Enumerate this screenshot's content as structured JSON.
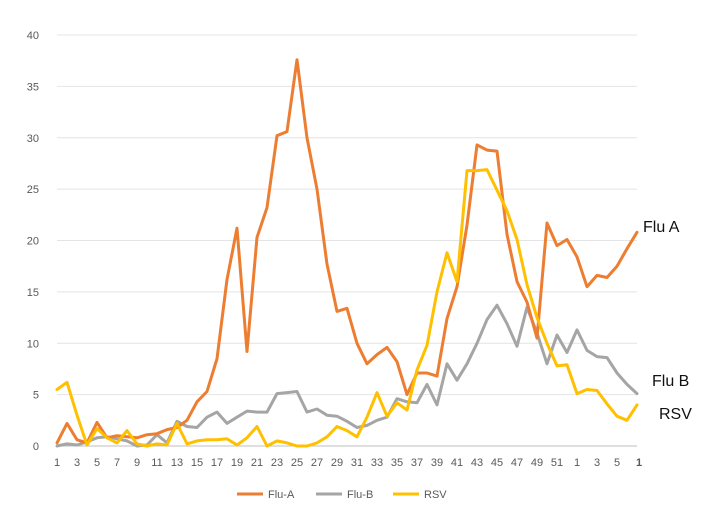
{
  "chart_data": {
    "type": "line",
    "ylim": [
      0,
      40
    ],
    "y_ticks": [
      "0",
      "5",
      "10",
      "15",
      "20",
      "25",
      "30",
      "35",
      "40"
    ],
    "x_tick_labels": [
      "1",
      "3",
      "5",
      "7",
      "9",
      "11",
      "13",
      "15",
      "17",
      "19",
      "21",
      "23",
      "25",
      "27",
      "29",
      "31",
      "33",
      "35",
      "37",
      "39",
      "41",
      "43",
      "45",
      "47",
      "49",
      "51",
      "1",
      "3",
      "5",
      "1"
    ],
    "grid": "horizontal",
    "legend_position": "bottom",
    "series": [
      {
        "name": "Flu-A",
        "color": "#ED7D31",
        "end_label": "Flu A",
        "values": [
          0.3,
          2.2,
          0.6,
          0.3,
          2.3,
          0.8,
          1.0,
          0.9,
          0.8,
          1.1,
          1.2,
          1.6,
          1.8,
          2.5,
          4.3,
          5.3,
          8.5,
          16.2,
          21.2,
          9.2,
          20.3,
          23.2,
          30.2,
          30.6,
          37.6,
          30.0,
          25.0,
          17.7,
          13.1,
          13.4,
          10.0,
          8.0,
          8.9,
          9.6,
          8.2,
          5.0,
          7.1,
          7.1,
          6.8,
          12.4,
          15.5,
          21.5,
          29.3,
          28.8,
          28.7,
          20.6,
          16.0,
          14.0,
          10.5,
          21.7,
          19.5,
          20.1,
          18.4,
          15.5,
          16.6,
          16.4,
          17.5,
          19.2,
          20.8
        ]
      },
      {
        "name": "Flu-B",
        "color": "#A5A5A5",
        "end_label": "Flu B",
        "values": [
          0.0,
          0.2,
          0.1,
          0.4,
          0.8,
          0.9,
          0.7,
          0.5,
          0.0,
          0.1,
          1.1,
          0.3,
          2.4,
          1.9,
          1.8,
          2.8,
          3.3,
          2.2,
          2.8,
          3.4,
          3.3,
          3.3,
          5.1,
          5.2,
          5.3,
          3.3,
          3.6,
          3.0,
          2.9,
          2.4,
          1.8,
          2.0,
          2.5,
          2.8,
          4.6,
          4.3,
          4.2,
          6.0,
          4.0,
          8.0,
          6.4,
          8.0,
          10.0,
          12.3,
          13.7,
          11.9,
          9.7,
          13.5,
          11.0,
          8.0,
          10.8,
          9.1,
          11.3,
          9.3,
          8.7,
          8.6,
          7.1,
          6.0,
          5.1
        ]
      },
      {
        "name": "RSV",
        "color": "#FFC000",
        "end_label": "RSV",
        "values": [
          5.5,
          6.2,
          3.0,
          0.1,
          1.7,
          0.8,
          0.3,
          1.5,
          0.2,
          0.0,
          0.2,
          0.1,
          2.2,
          0.2,
          0.5,
          0.6,
          0.6,
          0.7,
          0.1,
          0.8,
          1.9,
          0.0,
          0.5,
          0.3,
          0.0,
          0.0,
          0.3,
          0.9,
          1.9,
          1.5,
          0.9,
          2.8,
          5.2,
          2.9,
          4.2,
          3.5,
          7.4,
          9.8,
          15.0,
          18.8,
          16.0,
          26.8,
          26.8,
          26.9,
          24.9,
          22.9,
          20.1,
          15.7,
          12.5,
          10.0,
          7.8,
          7.9,
          5.1,
          5.5,
          5.4,
          4.1,
          2.9,
          2.5,
          4.0
        ]
      }
    ]
  }
}
